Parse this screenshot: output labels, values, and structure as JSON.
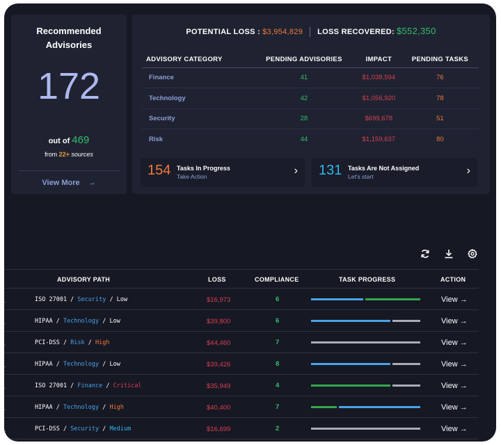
{
  "advisories": {
    "title_line1": "Recommended",
    "title_line2": "Advisories",
    "count": "172",
    "out_of_label": "out of",
    "total": "469",
    "from_label": "from",
    "source_count": "22+",
    "sources_label": "sources",
    "view_more": "View More",
    "view_more_arrow": "→"
  },
  "summary": {
    "potential_loss_label": "POTENTIAL LOSS :",
    "potential_loss_value": "$3,954,829",
    "loss_recovered_label": "LOSS RECOVERED:",
    "loss_recovered_value": "$552,350"
  },
  "category_table": {
    "headers": [
      "ADVISORY CATEGORY",
      "PENDING ADVISORIES",
      "IMPACT",
      "PENDING TASKS"
    ],
    "rows": [
      {
        "category": "Finance",
        "pending": "41",
        "impact": "$1,038,594",
        "tasks": "76"
      },
      {
        "category": "Technology",
        "pending": "42",
        "impact": "$1,056,920",
        "tasks": "78"
      },
      {
        "category": "Security",
        "pending": "28",
        "impact": "$699,678",
        "tasks": "51"
      },
      {
        "category": "Risk",
        "pending": "44",
        "impact": "$1,159,637",
        "tasks": "80"
      }
    ]
  },
  "tiles": [
    {
      "count": "154",
      "title": "Tasks In Progress",
      "subtitle": "Take Action",
      "chevron": "›"
    },
    {
      "count": "131",
      "title": "Tasks Are Not Assigned",
      "subtitle": "Let's start",
      "chevron": "›"
    }
  ],
  "toolbar": {
    "icons": [
      "refresh-icon",
      "download-icon",
      "settings-gear-icon"
    ]
  },
  "paths_table": {
    "headers": {
      "path": "ADVISORY PATH",
      "loss": "LOSS",
      "compliance": "COMPLIANCE",
      "progress": "TASK PROGRESS",
      "action": "ACTION"
    },
    "row_marker": ".",
    "rows": [
      {
        "standard": "ISO 27001",
        "category": "Security",
        "severity": "Low",
        "severity_color": "#ffffff",
        "loss": "$16,973",
        "compliance": "6",
        "progress": [
          {
            "color": "#4aa3e8",
            "fraction": 0.49
          },
          {
            "color": "#33a84a",
            "fraction": 0.51
          }
        ],
        "action": "View →"
      },
      {
        "standard": "HIPAA",
        "category": "Technology",
        "severity": "Low",
        "severity_color": "#ffffff",
        "loss": "$39,800",
        "compliance": "6",
        "progress": [
          {
            "color": "#4aa3e8",
            "fraction": 0.74
          },
          {
            "color": "#a9adb8",
            "fraction": 0.26
          }
        ],
        "action": "View →"
      },
      {
        "standard": "PCI-DSS",
        "category": "Risk",
        "severity": "High",
        "severity_color": "#f07a3a",
        "loss": "$44,460",
        "compliance": "7",
        "progress": [
          {
            "color": "#a9adb8",
            "fraction": 1.0
          }
        ],
        "action": "View →"
      },
      {
        "standard": "HIPAA",
        "category": "Technology",
        "severity": "Low",
        "severity_color": "#ffffff",
        "loss": "$39,426",
        "compliance": "8",
        "progress": [
          {
            "color": "#4aa3e8",
            "fraction": 0.74
          },
          {
            "color": "#a9adb8",
            "fraction": 0.26
          }
        ],
        "action": "View →"
      },
      {
        "standard": "ISO 27001",
        "category": "Finance",
        "severity": "Critical",
        "severity_color": "#d8404f",
        "loss": "$35,949",
        "compliance": "4",
        "progress": [
          {
            "color": "#33a84a",
            "fraction": 0.74
          },
          {
            "color": "#a9adb8",
            "fraction": 0.26
          }
        ],
        "action": "View →"
      },
      {
        "standard": "HIPAA",
        "category": "Technology",
        "severity": "High",
        "severity_color": "#f07a3a",
        "loss": "$40,400",
        "compliance": "7",
        "progress": [
          {
            "color": "#33a84a",
            "fraction": 0.24
          },
          {
            "color": "#4aa3e8",
            "fraction": 0.76
          }
        ],
        "action": "View →"
      },
      {
        "standard": "PCI-DSS",
        "category": "Security",
        "severity": "Medium",
        "severity_color": "#2fb8e8",
        "loss": "$16,699",
        "compliance": "2",
        "progress": [
          {
            "color": "#a9adb8",
            "fraction": 1.0
          }
        ],
        "action": "View →"
      }
    ]
  },
  "colors": {
    "accent_blue": "#8d9fd6",
    "green": "#33c06a",
    "orange": "#f07a3a",
    "red": "#d8404f",
    "cyan": "#2fb8e8"
  }
}
